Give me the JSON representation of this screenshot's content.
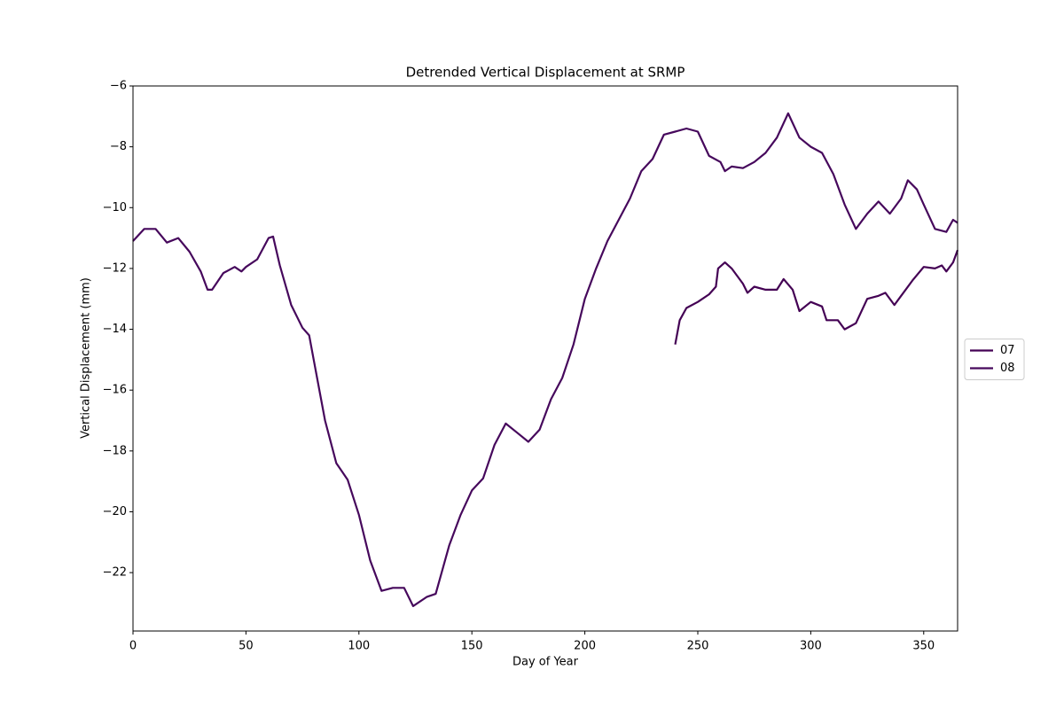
{
  "chart_data": {
    "type": "line",
    "title": "Detrended Vertical Displacement at SRMP",
    "x_label": "Day of Year",
    "y_label": "Vertical Displacement (mm)",
    "xlim": [
      0,
      365
    ],
    "ylim": [
      -23.92,
      -6
    ],
    "xticks": [
      0,
      50,
      100,
      150,
      200,
      250,
      300,
      350
    ],
    "yticks": [
      {
        "value": -22,
        "label": "−22"
      },
      {
        "value": -20,
        "label": "−20"
      },
      {
        "value": -18,
        "label": "−18"
      },
      {
        "value": -16,
        "label": "−16"
      },
      {
        "value": -14,
        "label": "−14"
      },
      {
        "value": -12,
        "label": "−12"
      },
      {
        "value": -10,
        "label": "−10"
      },
      {
        "value": -8,
        "label": "−8"
      },
      {
        "value": -6,
        "label": "−6"
      }
    ],
    "legend": "center left outside",
    "series": [
      {
        "name": "07",
        "color": "#440154",
        "x": [
          240,
          242,
          245,
          250,
          255,
          258,
          259,
          262,
          265,
          270,
          272,
          275,
          280,
          285,
          288,
          292,
          295,
          300,
          305,
          307,
          312,
          315,
          320,
          325,
          330,
          333,
          337,
          340,
          345,
          350,
          355,
          358,
          360,
          363,
          365
        ],
        "values": [
          -14.5,
          -13.7,
          -13.3,
          -13.1,
          -12.85,
          -12.6,
          -12.0,
          -11.8,
          -12.0,
          -12.5,
          -12.8,
          -12.6,
          -12.7,
          -12.7,
          -12.35,
          -12.7,
          -13.4,
          -13.1,
          -13.25,
          -13.7,
          -13.7,
          -14.0,
          -13.8,
          -13.0,
          -12.9,
          -12.8,
          -13.2,
          -12.9,
          -12.4,
          -11.95,
          -12.0,
          -11.9,
          -12.1,
          -11.8,
          -11.4
        ]
      },
      {
        "name": "08",
        "color": "#46085c",
        "x": [
          0,
          5,
          10,
          15,
          20,
          25,
          30,
          33,
          35,
          40,
          45,
          48,
          50,
          55,
          60,
          62,
          65,
          70,
          75,
          78,
          80,
          85,
          90,
          95,
          100,
          105,
          110,
          115,
          120,
          124,
          130,
          134,
          140,
          145,
          150,
          155,
          160,
          165,
          170,
          175,
          180,
          185,
          190,
          195,
          200,
          205,
          210,
          215,
          220,
          225,
          230,
          235,
          240,
          245,
          250,
          255,
          260,
          262,
          265,
          270,
          275,
          280,
          285,
          290,
          295,
          300,
          305,
          310,
          315,
          320,
          325,
          330,
          335,
          340,
          343,
          347,
          350,
          355,
          360,
          363,
          365
        ],
        "values": [
          -11.1,
          -10.7,
          -10.7,
          -11.15,
          -11.0,
          -11.45,
          -12.1,
          -12.7,
          -12.7,
          -12.15,
          -11.95,
          -12.1,
          -11.95,
          -11.7,
          -11.0,
          -10.95,
          -11.9,
          -13.2,
          -13.95,
          -14.2,
          -15.0,
          -17.0,
          -18.4,
          -18.95,
          -20.1,
          -21.6,
          -22.6,
          -22.5,
          -22.5,
          -23.1,
          -22.8,
          -22.7,
          -21.1,
          -20.1,
          -19.3,
          -18.9,
          -17.8,
          -17.1,
          -17.4,
          -17.7,
          -17.3,
          -16.3,
          -15.6,
          -14.5,
          -13.0,
          -12.0,
          -11.1,
          -10.4,
          -9.7,
          -8.8,
          -8.4,
          -7.6,
          -7.5,
          -7.4,
          -7.5,
          -8.3,
          -8.5,
          -8.8,
          -8.65,
          -8.7,
          -8.5,
          -8.2,
          -7.7,
          -6.9,
          -7.7,
          -8.0,
          -8.2,
          -8.9,
          -9.9,
          -10.7,
          -10.2,
          -9.8,
          -10.2,
          -9.7,
          -9.1,
          -9.4,
          -9.9,
          -10.7,
          -10.8,
          -10.4,
          -10.5
        ]
      }
    ]
  }
}
